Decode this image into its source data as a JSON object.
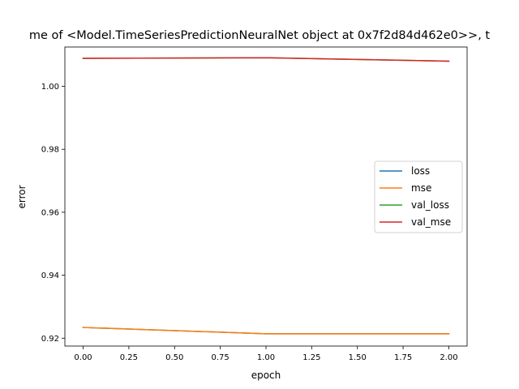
{
  "chart_data": {
    "type": "line",
    "title": "me of <Model.TimeSeriesPredictionNeuralNet object at 0x7f2d84d462e0>>, t",
    "xlabel": "epoch",
    "ylabel": "error",
    "x": [
      0,
      1,
      2
    ],
    "xlim": [
      -0.1,
      2.1
    ],
    "ylim": [
      0.9175,
      1.0125
    ],
    "xticks": [
      "0.00",
      "0.25",
      "0.50",
      "0.75",
      "1.00",
      "1.25",
      "1.50",
      "1.75",
      "2.00"
    ],
    "xtick_values": [
      0,
      0.25,
      0.5,
      0.75,
      1.0,
      1.25,
      1.5,
      1.75,
      2.0
    ],
    "yticks": [
      "0.92",
      "0.94",
      "0.96",
      "0.98",
      "1.00"
    ],
    "ytick_values": [
      0.92,
      0.94,
      0.96,
      0.98,
      1.0
    ],
    "grid": false,
    "legend_position": "right",
    "series": [
      {
        "name": "loss",
        "color": "#1f77b4",
        "values": [
          0.9234,
          0.9214,
          0.9214
        ]
      },
      {
        "name": "mse",
        "color": "#ff7f0e",
        "values": [
          0.9234,
          0.9214,
          0.9214
        ]
      },
      {
        "name": "val_loss",
        "color": "#2ca02c",
        "values": [
          1.0089,
          1.0091,
          1.008
        ]
      },
      {
        "name": "val_mse",
        "color": "#d62728",
        "values": [
          1.0089,
          1.0091,
          1.008
        ]
      }
    ]
  }
}
